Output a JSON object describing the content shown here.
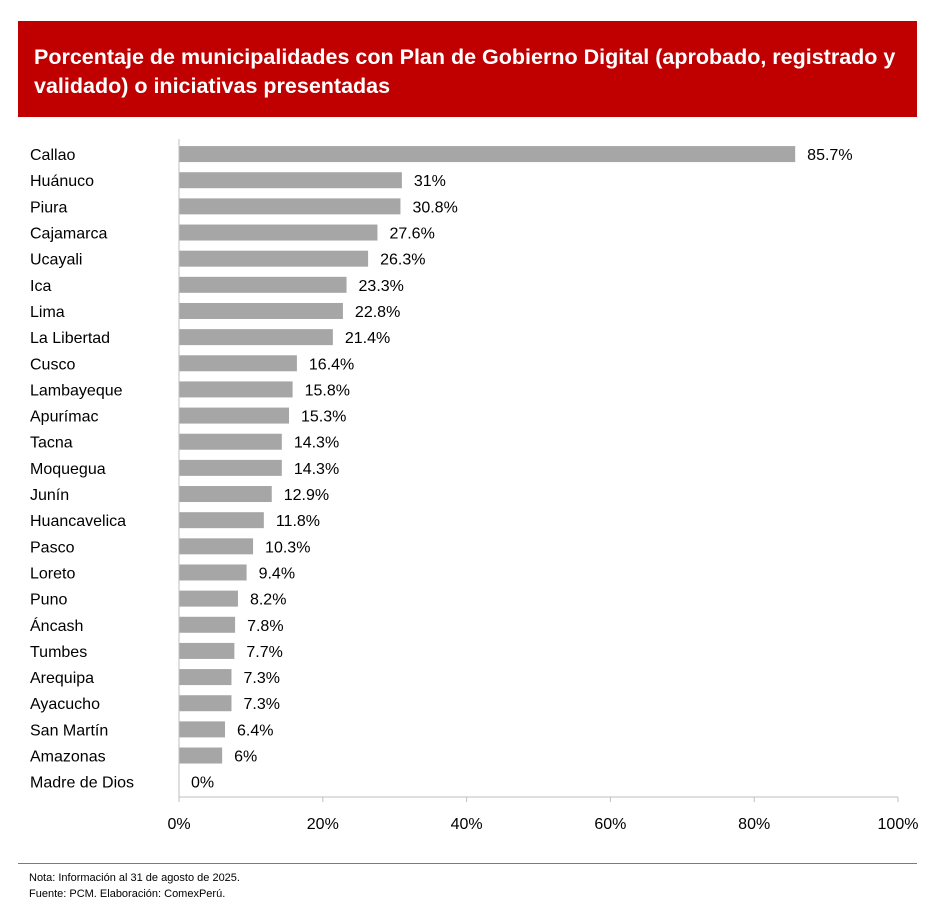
{
  "title": "Porcentaje de municipalidades con Plan de Gobierno Digital (aprobado, registrado y validado) o iniciativas presentadas",
  "colors": {
    "header": "#c00000",
    "bar": "#a6a6a6",
    "axis": "#bfbfbf",
    "rule": "#d9534f"
  },
  "chart_data": {
    "type": "bar",
    "orientation": "horizontal",
    "categories": [
      "Callao",
      "Huánuco",
      "Piura",
      "Cajamarca",
      "Ucayali",
      "Ica",
      "Lima",
      "La Libertad",
      "Cusco",
      "Lambayeque",
      "Apurímac",
      "Tacna",
      "Moquegua",
      "Junín",
      "Huancavelica",
      "Pasco",
      "Loreto",
      "Puno",
      "Áncash",
      "Tumbes",
      "Arequipa",
      "Ayacucho",
      "San Martín",
      "Amazonas",
      "Madre de Dios"
    ],
    "values": [
      85.7,
      31,
      30.8,
      27.6,
      26.3,
      23.3,
      22.8,
      21.4,
      16.4,
      15.8,
      15.3,
      14.3,
      14.3,
      12.9,
      11.8,
      10.3,
      9.4,
      8.2,
      7.8,
      7.7,
      7.3,
      7.3,
      6.4,
      6,
      0
    ],
    "value_labels": [
      "85.7%",
      "31%",
      "30.8%",
      "27.6%",
      "26.3%",
      "23.3%",
      "22.8%",
      "21.4%",
      "16.4%",
      "15.8%",
      "15.3%",
      "14.3%",
      "14.3%",
      "12.9%",
      "11.8%",
      "10.3%",
      "9.4%",
      "8.2%",
      "7.8%",
      "7.7%",
      "7.3%",
      "7.3%",
      "6.4%",
      "6%",
      "0%"
    ],
    "xlim": [
      0,
      100
    ],
    "xticks": [
      0,
      20,
      40,
      60,
      80,
      100
    ],
    "xtick_labels": [
      "0%",
      "20%",
      "40%",
      "60%",
      "80%",
      "100%"
    ],
    "xlabel": "",
    "ylabel": "",
    "grid": false,
    "legend": "none"
  },
  "notes": {
    "note": "Nota: Información al 31 de agosto de 2025.",
    "source": "Fuente: PCM. Elaboración: ComexPerú."
  }
}
